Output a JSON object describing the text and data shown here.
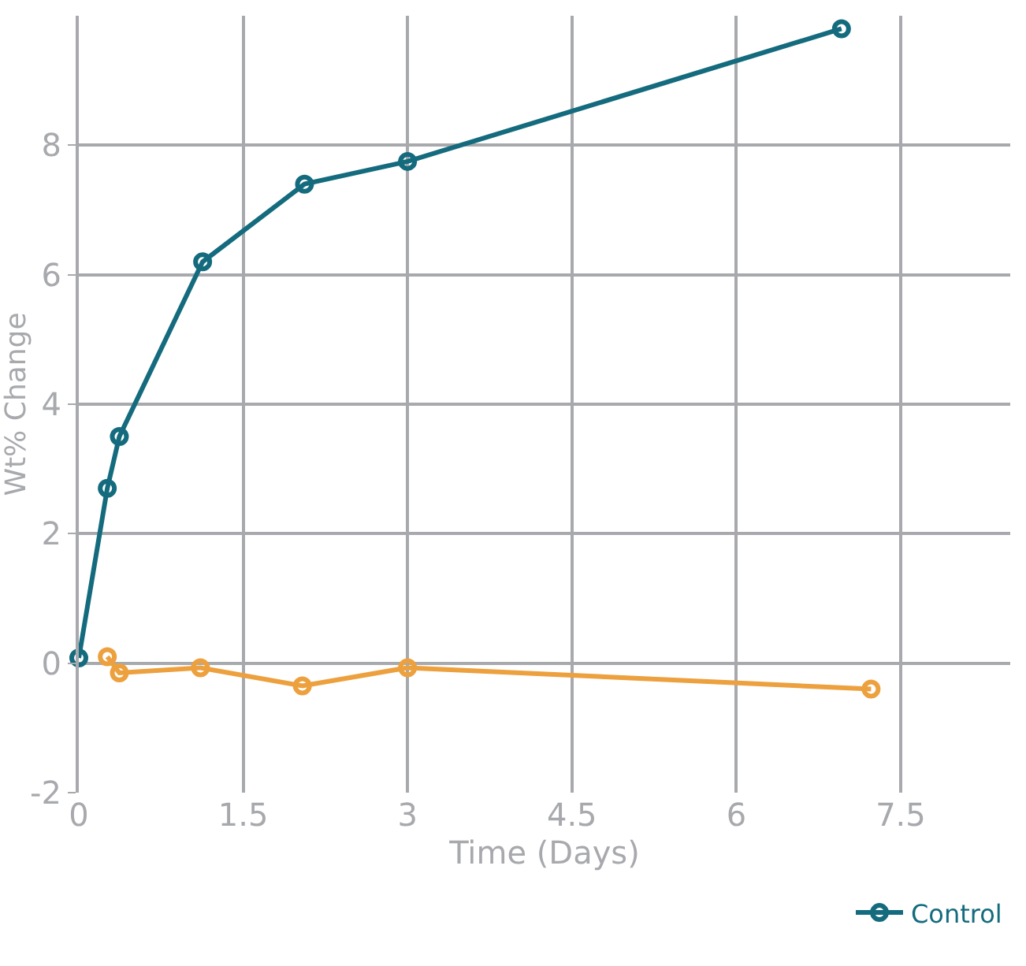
{
  "chart_data": {
    "type": "line",
    "xlabel": "Time (Days)",
    "ylabel": "Wt% Change",
    "xlim": [
      0,
      8.5
    ],
    "xticks": [
      0,
      1.5,
      3,
      4.5,
      6,
      7.5
    ],
    "ylim": [
      -2,
      10
    ],
    "yticks": [
      -2,
      0,
      2,
      4,
      6,
      8
    ],
    "grid": true,
    "legend": "bottom right",
    "marker": "circle",
    "line_style": "solid",
    "series": [
      {
        "color": "#eda03e",
        "x": [
          0.26,
          0.37,
          1.11,
          2.04,
          3,
          7.23
        ],
        "values": [
          0.1,
          -0.15,
          -0.07,
          -0.35,
          -0.07,
          -0.4
        ]
      },
      {
        "name": "Control",
        "color": "#146b7e",
        "x": [
          0,
          0.26,
          0.37,
          1.13,
          2.06,
          3,
          6.96
        ],
        "values": [
          0.08,
          2.7,
          3.5,
          6.2,
          7.4,
          7.75,
          9.8
        ]
      }
    ]
  }
}
